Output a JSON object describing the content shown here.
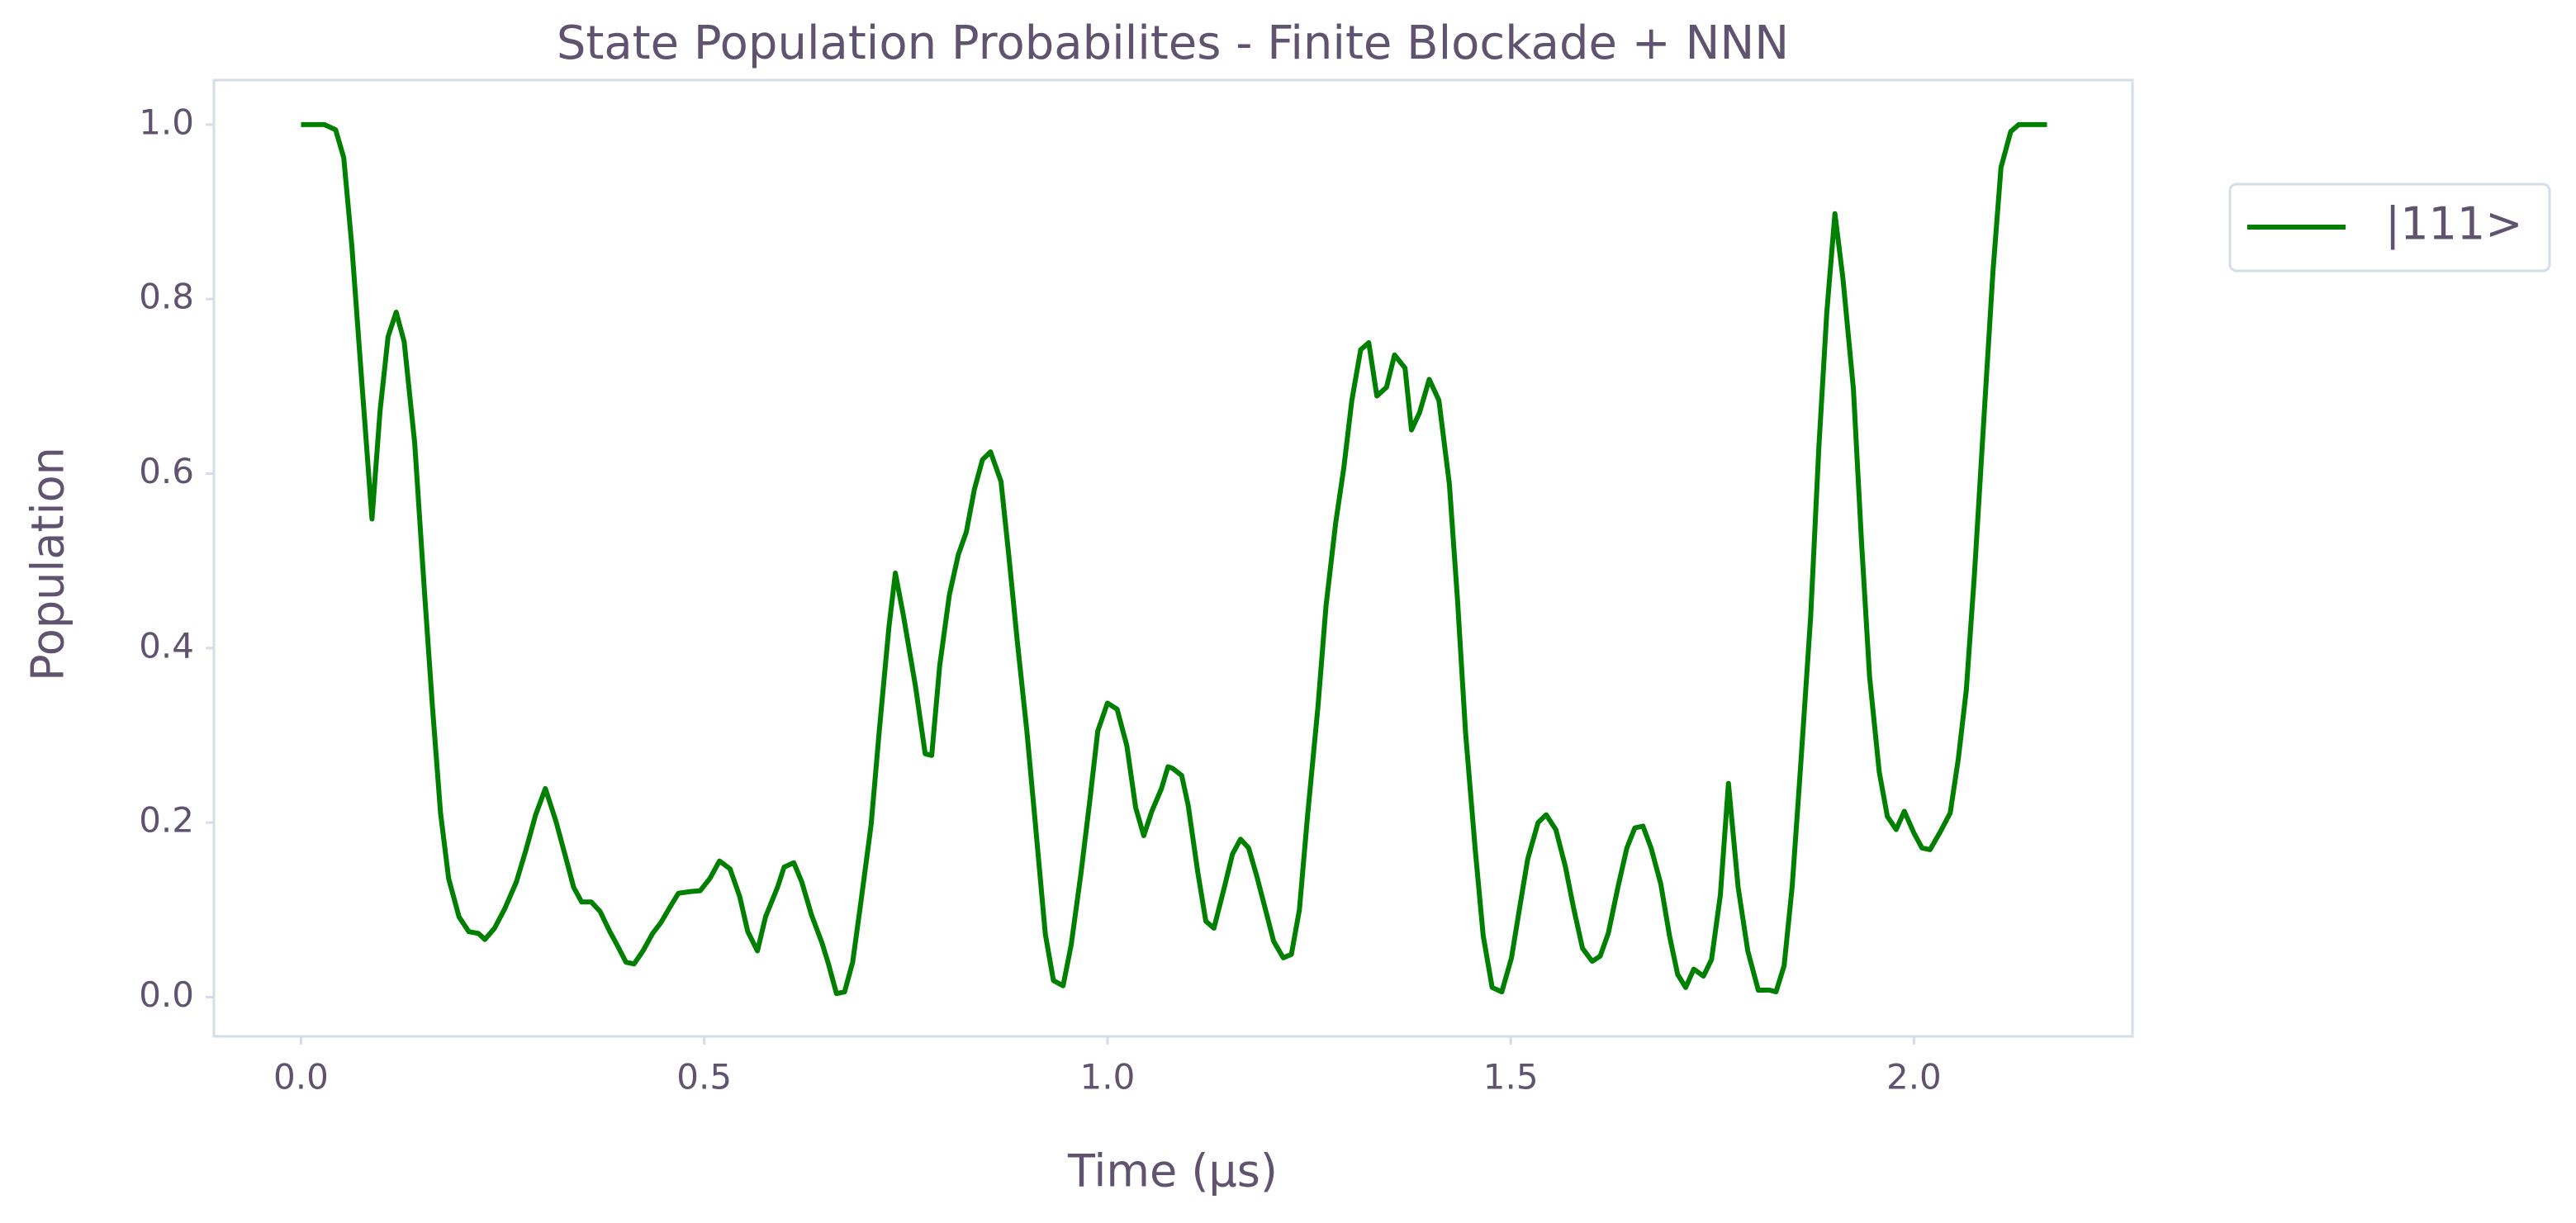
{
  "chart_data": {
    "type": "line",
    "title": "State Population Probabilites - Finite Blockade + NNN",
    "xlabel": "Time (μs)",
    "ylabel": "Population",
    "x": [
      0.0,
      0.029,
      0.043,
      0.053,
      0.063,
      0.075,
      0.088,
      0.098,
      0.108,
      0.118,
      0.128,
      0.141,
      0.153,
      0.163,
      0.173,
      0.183,
      0.196,
      0.208,
      0.22,
      0.228,
      0.24,
      0.253,
      0.267,
      0.279,
      0.291,
      0.303,
      0.316,
      0.33,
      0.338,
      0.348,
      0.36,
      0.371,
      0.383,
      0.393,
      0.403,
      0.413,
      0.424,
      0.436,
      0.446,
      0.458,
      0.468,
      0.483,
      0.495,
      0.507,
      0.519,
      0.532,
      0.544,
      0.554,
      0.566,
      0.576,
      0.591,
      0.599,
      0.611,
      0.621,
      0.633,
      0.646,
      0.654,
      0.664,
      0.674,
      0.684,
      0.694,
      0.707,
      0.717,
      0.729,
      0.737,
      0.747,
      0.762,
      0.774,
      0.782,
      0.792,
      0.804,
      0.815,
      0.825,
      0.835,
      0.845,
      0.855,
      0.868,
      0.878,
      0.888,
      0.9,
      0.91,
      0.923,
      0.933,
      0.945,
      0.955,
      0.967,
      0.978,
      0.988,
      1.0,
      1.012,
      1.024,
      1.035,
      1.045,
      1.055,
      1.067,
      1.075,
      1.081,
      1.092,
      1.1,
      1.112,
      1.122,
      1.132,
      1.145,
      1.155,
      1.165,
      1.175,
      1.185,
      1.196,
      1.206,
      1.218,
      1.228,
      1.238,
      1.248,
      1.261,
      1.271,
      1.283,
      1.293,
      1.303,
      1.314,
      1.324,
      1.334,
      1.346,
      1.356,
      1.369,
      1.377,
      1.387,
      1.399,
      1.411,
      1.424,
      1.434,
      1.444,
      1.456,
      1.466,
      1.477,
      1.489,
      1.501,
      1.511,
      1.521,
      1.534,
      1.544,
      1.556,
      1.568,
      1.578,
      1.589,
      1.601,
      1.611,
      1.621,
      1.633,
      1.644,
      1.654,
      1.664,
      1.674,
      1.686,
      1.697,
      1.707,
      1.717,
      1.727,
      1.739,
      1.749,
      1.76,
      1.77,
      1.782,
      1.794,
      1.807,
      1.821,
      1.829,
      1.839,
      1.849,
      1.859,
      1.872,
      1.882,
      1.892,
      1.902,
      1.912,
      1.925,
      1.935,
      1.945,
      1.957,
      1.967,
      1.978,
      1.988,
      2.0,
      2.01,
      2.02,
      2.033,
      2.045,
      2.055,
      2.065,
      2.075,
      2.088,
      2.098,
      2.108,
      2.12,
      2.13,
      2.165
    ],
    "series": [
      {
        "name": "|111>",
        "color": "#008000",
        "values": [
          1.0,
          1.0,
          0.994,
          0.962,
          0.861,
          0.71,
          0.548,
          0.672,
          0.757,
          0.785,
          0.751,
          0.635,
          0.465,
          0.333,
          0.211,
          0.136,
          0.092,
          0.075,
          0.073,
          0.066,
          0.079,
          0.102,
          0.132,
          0.169,
          0.209,
          0.239,
          0.202,
          0.154,
          0.126,
          0.109,
          0.109,
          0.098,
          0.075,
          0.058,
          0.04,
          0.038,
          0.053,
          0.073,
          0.085,
          0.104,
          0.119,
          0.121,
          0.122,
          0.136,
          0.156,
          0.147,
          0.115,
          0.075,
          0.053,
          0.092,
          0.126,
          0.149,
          0.154,
          0.132,
          0.094,
          0.062,
          0.038,
          0.004,
          0.006,
          0.04,
          0.107,
          0.198,
          0.305,
          0.424,
          0.486,
          0.437,
          0.356,
          0.279,
          0.277,
          0.38,
          0.461,
          0.507,
          0.533,
          0.582,
          0.616,
          0.625,
          0.591,
          0.503,
          0.409,
          0.305,
          0.205,
          0.072,
          0.019,
          0.013,
          0.06,
          0.141,
          0.224,
          0.305,
          0.337,
          0.33,
          0.288,
          0.217,
          0.185,
          0.213,
          0.239,
          0.264,
          0.262,
          0.254,
          0.22,
          0.143,
          0.087,
          0.079,
          0.126,
          0.164,
          0.181,
          0.171,
          0.139,
          0.1,
          0.064,
          0.045,
          0.049,
          0.1,
          0.207,
          0.333,
          0.448,
          0.544,
          0.606,
          0.684,
          0.742,
          0.75,
          0.689,
          0.699,
          0.736,
          0.721,
          0.65,
          0.67,
          0.708,
          0.684,
          0.588,
          0.456,
          0.303,
          0.169,
          0.07,
          0.011,
          0.006,
          0.045,
          0.102,
          0.158,
          0.2,
          0.209,
          0.192,
          0.149,
          0.102,
          0.056,
          0.041,
          0.047,
          0.073,
          0.126,
          0.171,
          0.194,
          0.196,
          0.171,
          0.13,
          0.07,
          0.026,
          0.011,
          0.032,
          0.024,
          0.043,
          0.117,
          0.245,
          0.126,
          0.053,
          0.008,
          0.008,
          0.006,
          0.036,
          0.126,
          0.258,
          0.437,
          0.629,
          0.785,
          0.898,
          0.823,
          0.697,
          0.522,
          0.367,
          0.258,
          0.207,
          0.192,
          0.213,
          0.188,
          0.171,
          0.169,
          0.19,
          0.211,
          0.273,
          0.352,
          0.484,
          0.682,
          0.832,
          0.951,
          0.992,
          1.0,
          1.0
        ]
      }
    ],
    "xlim": [
      -0.108,
      2.271
    ],
    "ylim": [
      -0.045,
      1.051
    ],
    "xticks": [
      {
        "value": 0,
        "label": "0.0"
      },
      0.5,
      {
        "value": 1,
        "label": "1.0"
      },
      1.5,
      {
        "value": 2,
        "label": "2.0"
      }
    ],
    "yticks": [
      {
        "value": 0,
        "label": "0.0"
      },
      0.2,
      0.4,
      0.6,
      0.8,
      {
        "value": 1,
        "label": "1.0"
      }
    ],
    "grid": false,
    "legend": "outside upper right"
  }
}
